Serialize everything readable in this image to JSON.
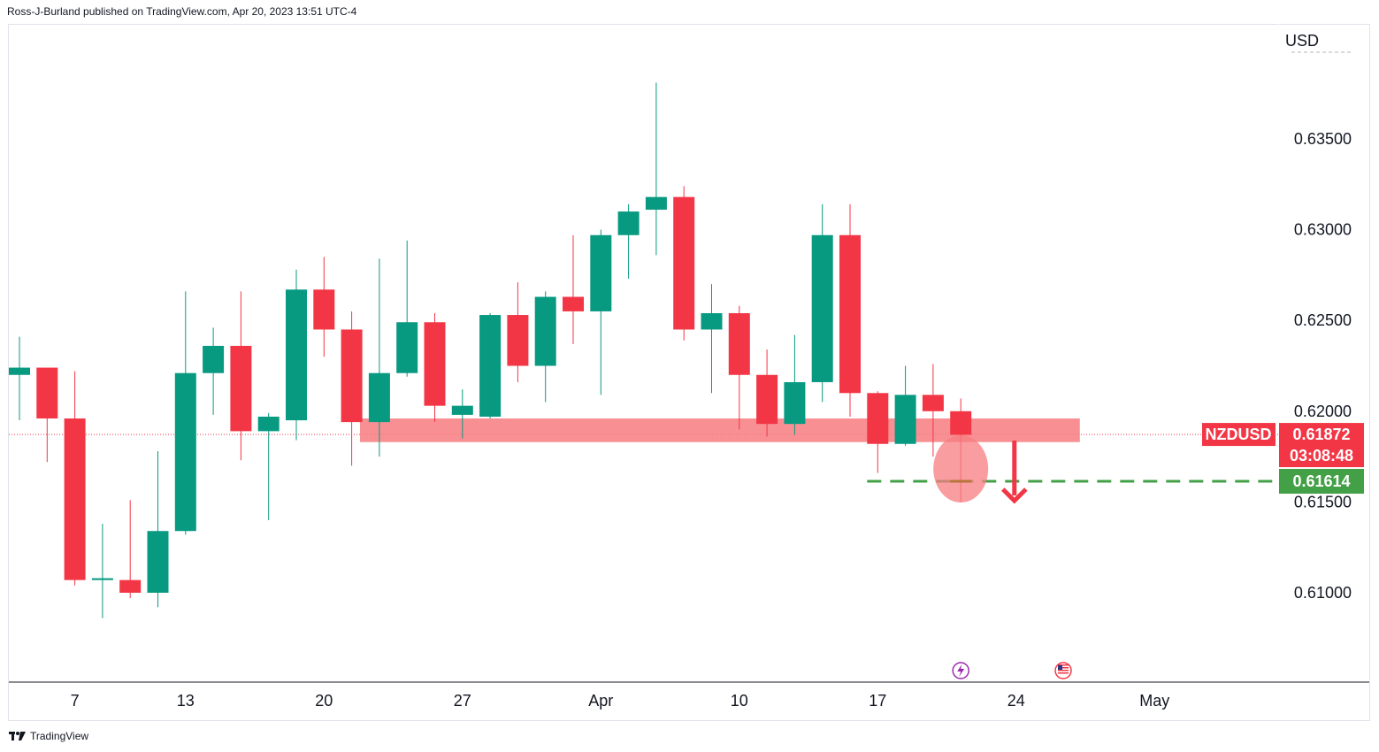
{
  "header": {
    "published_by": "Ross-J-Burland published on TradingView.com, Apr 20, 2023 13:51 UTC-4"
  },
  "footer": {
    "brand": "TradingView",
    "logo_icon": "tradingview-logo-icon"
  },
  "colors": {
    "up": "#089981",
    "down": "#f23645",
    "zone": "#f77c80",
    "support": "#43a047",
    "grid_border": "#e0e3eb",
    "text": "#131722"
  },
  "chart_data": {
    "type": "candlestick",
    "symbol": "NZDUSD",
    "currency": "USD",
    "y_ticks": [
      "0.63500",
      "0.63000",
      "0.62500",
      "0.62000",
      "0.61500",
      "0.61000"
    ],
    "y_tick_values": [
      0.635,
      0.63,
      0.625,
      0.62,
      0.615,
      0.61
    ],
    "x_ticks": [
      {
        "label": "7",
        "index": 2
      },
      {
        "label": "13",
        "index": 6
      },
      {
        "label": "20",
        "index": 11
      },
      {
        "label": "27",
        "index": 16
      },
      {
        "label": "Apr",
        "index": 21
      },
      {
        "label": "10",
        "index": 26
      },
      {
        "label": "17",
        "index": 31
      },
      {
        "label": "24",
        "index": 36
      },
      {
        "label": "May",
        "index": 41
      }
    ],
    "candles": [
      {
        "o": 0.622,
        "h": 0.6241,
        "l": 0.6195,
        "c": 0.6224
      },
      {
        "o": 0.6224,
        "h": 0.6224,
        "l": 0.6172,
        "c": 0.6196
      },
      {
        "o": 0.6196,
        "h": 0.6222,
        "l": 0.6104,
        "c": 0.6107
      },
      {
        "o": 0.6107,
        "h": 0.6138,
        "l": 0.6086,
        "c": 0.6108
      },
      {
        "o": 0.6107,
        "h": 0.6151,
        "l": 0.6097,
        "c": 0.61
      },
      {
        "o": 0.61,
        "h": 0.6178,
        "l": 0.6092,
        "c": 0.6134
      },
      {
        "o": 0.6134,
        "h": 0.6266,
        "l": 0.6132,
        "c": 0.6221
      },
      {
        "o": 0.6221,
        "h": 0.6246,
        "l": 0.6198,
        "c": 0.6236
      },
      {
        "o": 0.6236,
        "h": 0.6266,
        "l": 0.6173,
        "c": 0.6189
      },
      {
        "o": 0.6189,
        "h": 0.6199,
        "l": 0.614,
        "c": 0.6197
      },
      {
        "o": 0.6195,
        "h": 0.6278,
        "l": 0.6184,
        "c": 0.6267
      },
      {
        "o": 0.6267,
        "h": 0.6285,
        "l": 0.623,
        "c": 0.6245
      },
      {
        "o": 0.6245,
        "h": 0.6255,
        "l": 0.617,
        "c": 0.6194
      },
      {
        "o": 0.6194,
        "h": 0.6284,
        "l": 0.6175,
        "c": 0.6221
      },
      {
        "o": 0.6221,
        "h": 0.6294,
        "l": 0.6219,
        "c": 0.6249
      },
      {
        "o": 0.6249,
        "h": 0.6254,
        "l": 0.6194,
        "c": 0.6203
      },
      {
        "o": 0.6198,
        "h": 0.6212,
        "l": 0.6185,
        "c": 0.6203
      },
      {
        "o": 0.6197,
        "h": 0.6254,
        "l": 0.6196,
        "c": 0.6253
      },
      {
        "o": 0.6253,
        "h": 0.6271,
        "l": 0.6216,
        "c": 0.6225
      },
      {
        "o": 0.6225,
        "h": 0.6266,
        "l": 0.6205,
        "c": 0.6263
      },
      {
        "o": 0.6263,
        "h": 0.6297,
        "l": 0.6237,
        "c": 0.6255
      },
      {
        "o": 0.6255,
        "h": 0.63,
        "l": 0.6209,
        "c": 0.6297
      },
      {
        "o": 0.6297,
        "h": 0.6314,
        "l": 0.6273,
        "c": 0.631
      },
      {
        "o": 0.6311,
        "h": 0.6381,
        "l": 0.6286,
        "c": 0.6318
      },
      {
        "o": 0.6318,
        "h": 0.6324,
        "l": 0.6239,
        "c": 0.6245
      },
      {
        "o": 0.6245,
        "h": 0.627,
        "l": 0.621,
        "c": 0.6254
      },
      {
        "o": 0.6254,
        "h": 0.6258,
        "l": 0.619,
        "c": 0.622
      },
      {
        "o": 0.622,
        "h": 0.6234,
        "l": 0.6186,
        "c": 0.6193
      },
      {
        "o": 0.6193,
        "h": 0.6242,
        "l": 0.6187,
        "c": 0.6216
      },
      {
        "o": 0.6216,
        "h": 0.6314,
        "l": 0.6205,
        "c": 0.6297
      },
      {
        "o": 0.6297,
        "h": 0.6314,
        "l": 0.6197,
        "c": 0.621
      },
      {
        "o": 0.621,
        "h": 0.6211,
        "l": 0.6166,
        "c": 0.6182
      },
      {
        "o": 0.6182,
        "h": 0.6225,
        "l": 0.6181,
        "c": 0.6209
      },
      {
        "o": 0.6209,
        "h": 0.6226,
        "l": 0.6175,
        "c": 0.62
      },
      {
        "o": 0.62,
        "h": 0.6207,
        "l": 0.615,
        "c": 0.6187
      }
    ],
    "last_price": {
      "value": 0.61872,
      "label": "NZDUSD",
      "price_text": "0.61872",
      "countdown": "03:08:48"
    },
    "support_level": {
      "value": 0.61614,
      "price_text": "0.61614"
    },
    "resistance_zone": {
      "from": 0.6183,
      "to": 0.6196,
      "start_index": 12.3,
      "end_index": 38.3
    },
    "annotations": {
      "circle_note": "highlight on current candle low",
      "arrow": "down-arrow",
      "event_icons": [
        "lightning-icon",
        "us-flag-icon"
      ]
    }
  }
}
